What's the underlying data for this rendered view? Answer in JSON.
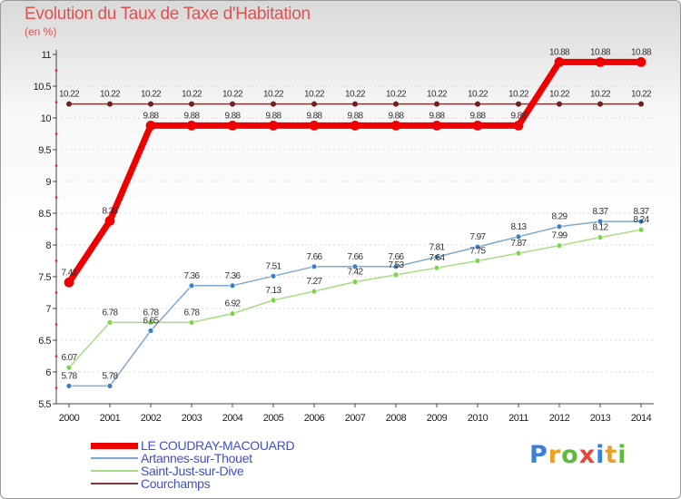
{
  "title": "Evolution du Taux de Taxe d'Habitation",
  "subtitle": "(en %)",
  "logo": {
    "text": "Proxiti",
    "colors": [
      "#3a7fd9",
      "#f0a020",
      "#5fba3c",
      "#e8463c",
      "#3a7fd9",
      "#f0a020",
      "#5fba3c"
    ]
  },
  "chart_data": {
    "type": "line",
    "title": "Evolution du Taux de Taxe d'Habitation",
    "ylabel": "(en %)",
    "xlabel": "",
    "x": [
      "2000",
      "2001",
      "2002",
      "2003",
      "2004",
      "2005",
      "2006",
      "2007",
      "2008",
      "2009",
      "2010",
      "2011",
      "2012",
      "2013",
      "2014"
    ],
    "ylim": [
      5.5,
      11
    ],
    "yticks": [
      "5.5",
      "6",
      "6.5",
      "7",
      "7.5",
      "8",
      "8.5",
      "9",
      "9.5",
      "10",
      "10.5",
      "11"
    ],
    "series": [
      {
        "name": "LE COUDRAY-MACOUARD",
        "color": "#ee0000",
        "values": [
          7.41,
          8.38,
          9.88,
          9.88,
          9.88,
          9.88,
          9.88,
          9.88,
          9.88,
          9.88,
          9.88,
          9.88,
          10.88,
          10.88,
          10.88
        ],
        "labels": [
          "7.41",
          "8.38",
          "9.88",
          "9.88",
          "9.88",
          "9.88",
          "9.88",
          "9.88",
          "9.88",
          "9.88",
          "9.88",
          "9.88",
          "10.88",
          "10.88",
          "10.88"
        ]
      },
      {
        "name": "Artannes-sur-Thouet",
        "color": "#7fa8d0",
        "values": [
          5.78,
          5.78,
          6.65,
          7.36,
          7.36,
          7.51,
          7.66,
          7.66,
          7.66,
          7.81,
          7.97,
          8.13,
          8.29,
          8.37,
          8.37
        ],
        "labels": [
          "5.78",
          "5.78",
          "6.65",
          "7.36",
          "7.36",
          "7.51",
          "7.66",
          "7.66",
          "7.66",
          "7.81",
          "7.97",
          "8.13",
          "8.29",
          "8.37",
          "8.37"
        ]
      },
      {
        "name": "Saint-Just-sur-Dive",
        "color": "#a8dc84",
        "values": [
          6.07,
          6.78,
          6.78,
          6.78,
          6.92,
          7.13,
          7.27,
          7.42,
          7.53,
          7.64,
          7.75,
          7.87,
          7.99,
          8.12,
          8.24
        ],
        "labels": [
          "6.07",
          "6.78",
          "6.78",
          "6.78",
          "6.92",
          "7.13",
          "7.27",
          "7.42",
          "7.53",
          "7.64",
          "7.75",
          "7.87",
          "7.99",
          "8.12",
          "8.24"
        ]
      },
      {
        "name": "Courchamps",
        "color": "#7a3a3a",
        "values": [
          10.22,
          10.22,
          10.22,
          10.22,
          10.22,
          10.22,
          10.22,
          10.22,
          10.22,
          10.22,
          10.22,
          10.22,
          10.22,
          10.22,
          10.22
        ],
        "labels": [
          "10.22",
          "10.22",
          "10.22",
          "10.22",
          "10.22",
          "10.22",
          "10.22",
          "10.22",
          "10.22",
          "10.22",
          "10.22",
          "10.22",
          "10.22",
          "10.22",
          "10.22"
        ]
      }
    ]
  }
}
